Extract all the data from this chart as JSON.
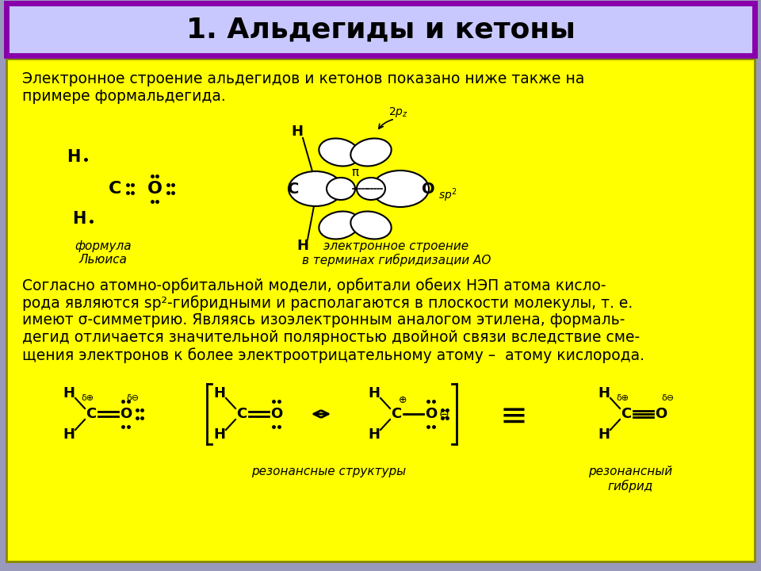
{
  "title": "1. Альдегиды и кетоны",
  "title_bg": "#c8c8ff",
  "title_border": "#8800aa",
  "content_bg": "#ffff00",
  "outer_bg": "#9999bb",
  "title_fontsize": 26,
  "text_color": "#000000",
  "para1_line1": "Электронное строение альдегидов и кетонов показано ниже также на",
  "para1_line2": "примере формальдегида.",
  "label_lewis_line1": "формула",
  "label_lewis_line2": "Льюиса",
  "label_orbital_line1": "электронное строение",
  "label_orbital_line2": "в терминах гибридизации АО",
  "para2_line1": "Согласно атомно-орбитальной модели, орбитали обеих НЭП атома кисло-",
  "para2_line2": "рода являются sp²-гибридными и располагаются в плоскости молекулы, т. е.",
  "para2_line3": "имеют σ-симметрию. Являясь изоэлектронным аналогом этилена, формаль-",
  "para2_line4": "дегид отличается значительной полярностью двойной связи вследствие сме-",
  "para2_line5": "щения электронов к более электроотрицательному атому –  атому кислорода.",
  "label_resonance": "резонансные структуры",
  "label_hybrid_line1": "резонансный",
  "label_hybrid_line2": "гибрид"
}
